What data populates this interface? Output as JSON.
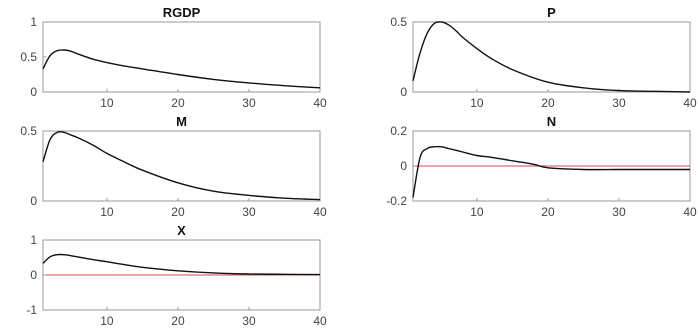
{
  "chart_data": [
    {
      "type": "line",
      "title": "RGDP",
      "xlim": [
        1,
        40
      ],
      "ylim": [
        0,
        1
      ],
      "xticks": [
        10,
        20,
        30,
        40
      ],
      "yticks": [
        0,
        0.5,
        1
      ],
      "zero_line": true,
      "series": [
        {
          "x": [
            1,
            2,
            3,
            4,
            5,
            6,
            8,
            10,
            12,
            15,
            20,
            25,
            30,
            35,
            40
          ],
          "values": [
            0.33,
            0.52,
            0.59,
            0.6,
            0.58,
            0.54,
            0.47,
            0.42,
            0.38,
            0.33,
            0.25,
            0.18,
            0.13,
            0.09,
            0.06
          ]
        }
      ]
    },
    {
      "type": "line",
      "title": "P",
      "xlim": [
        1,
        40
      ],
      "ylim": [
        0,
        0.5
      ],
      "xticks": [
        10,
        20,
        30,
        40
      ],
      "yticks": [
        0,
        0.5
      ],
      "zero_line": true,
      "series": [
        {
          "x": [
            1,
            2,
            3,
            4,
            5,
            6,
            7,
            8,
            10,
            12,
            15,
            20,
            25,
            30,
            35,
            40
          ],
          "values": [
            0.08,
            0.28,
            0.42,
            0.49,
            0.5,
            0.48,
            0.44,
            0.39,
            0.31,
            0.24,
            0.16,
            0.07,
            0.03,
            0.01,
            0.005,
            0.0
          ]
        }
      ]
    },
    {
      "type": "line",
      "title": "M",
      "xlim": [
        1,
        40
      ],
      "ylim": [
        0,
        0.5
      ],
      "xticks": [
        10,
        20,
        30,
        40
      ],
      "yticks": [
        0,
        0.5
      ],
      "zero_line": true,
      "series": [
        {
          "x": [
            1,
            2,
            3,
            4,
            5,
            6,
            8,
            10,
            12,
            15,
            20,
            25,
            30,
            35,
            40
          ],
          "values": [
            0.28,
            0.44,
            0.49,
            0.49,
            0.47,
            0.45,
            0.4,
            0.34,
            0.29,
            0.22,
            0.13,
            0.07,
            0.04,
            0.02,
            0.01
          ]
        }
      ]
    },
    {
      "type": "line",
      "title": "N",
      "xlim": [
        1,
        40
      ],
      "ylim": [
        -0.2,
        0.2
      ],
      "xticks": [
        10,
        20,
        30,
        40
      ],
      "yticks": [
        -0.2,
        0,
        0.2
      ],
      "zero_line": true,
      "series": [
        {
          "x": [
            1,
            2,
            3,
            4,
            5,
            6,
            8,
            10,
            12,
            15,
            18,
            20,
            25,
            30,
            35,
            40
          ],
          "values": [
            -0.18,
            0.05,
            0.1,
            0.11,
            0.11,
            0.1,
            0.08,
            0.06,
            0.05,
            0.03,
            0.01,
            -0.01,
            -0.02,
            -0.02,
            -0.02,
            -0.02
          ]
        }
      ]
    },
    {
      "type": "line",
      "title": "X",
      "xlim": [
        1,
        40
      ],
      "ylim": [
        -1,
        1
      ],
      "xticks": [
        10,
        20,
        30,
        40
      ],
      "yticks": [
        -1,
        0,
        1
      ],
      "zero_line": true,
      "series": [
        {
          "x": [
            1,
            2,
            3,
            4,
            5,
            6,
            8,
            10,
            12,
            15,
            20,
            25,
            30,
            35,
            40
          ],
          "values": [
            0.33,
            0.52,
            0.58,
            0.58,
            0.55,
            0.51,
            0.44,
            0.38,
            0.31,
            0.22,
            0.12,
            0.06,
            0.03,
            0.02,
            0.01
          ]
        }
      ]
    }
  ]
}
